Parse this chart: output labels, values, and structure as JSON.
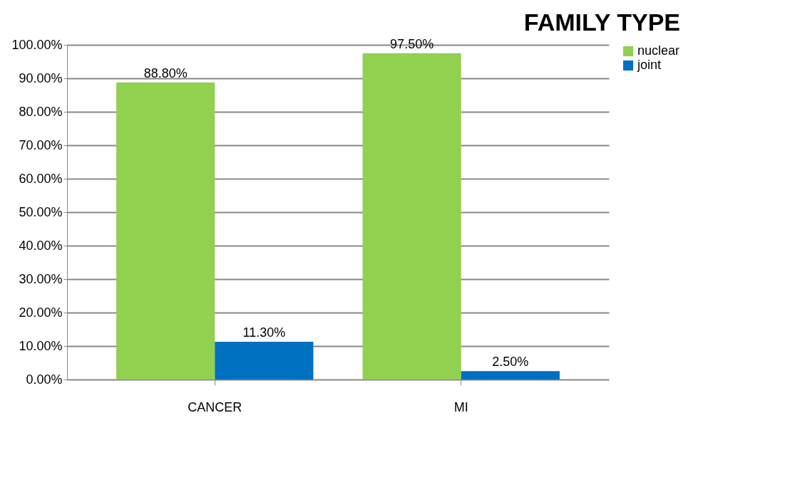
{
  "chart_data": {
    "type": "bar",
    "title": "FAMILY TYPE",
    "categories": [
      "CANCER",
      "MI"
    ],
    "series": [
      {
        "name": "nuclear",
        "color": "#92d050",
        "values": [
          88.8,
          97.5
        ],
        "value_labels": [
          "88.80%",
          "97.50%"
        ]
      },
      {
        "name": "joint",
        "color": "#0070c0",
        "values": [
          11.3,
          2.5
        ],
        "value_labels": [
          "11.30%",
          "2.50%"
        ]
      }
    ],
    "ylim": [
      0,
      100
    ],
    "yticks": [
      {
        "value": 0,
        "label": "0.00%"
      },
      {
        "value": 10,
        "label": "10.00%"
      },
      {
        "value": 20,
        "label": "20.00%"
      },
      {
        "value": 30,
        "label": "30.00%"
      },
      {
        "value": 40,
        "label": "40.00%"
      },
      {
        "value": 50,
        "label": "50.00%"
      },
      {
        "value": 60,
        "label": "60.00%"
      },
      {
        "value": 70,
        "label": "70.00%"
      },
      {
        "value": 80,
        "label": "80.00%"
      },
      {
        "value": 90,
        "label": "90.00%"
      },
      {
        "value": 100,
        "label": "100.00%"
      }
    ],
    "grid": "y",
    "legend": "right"
  }
}
